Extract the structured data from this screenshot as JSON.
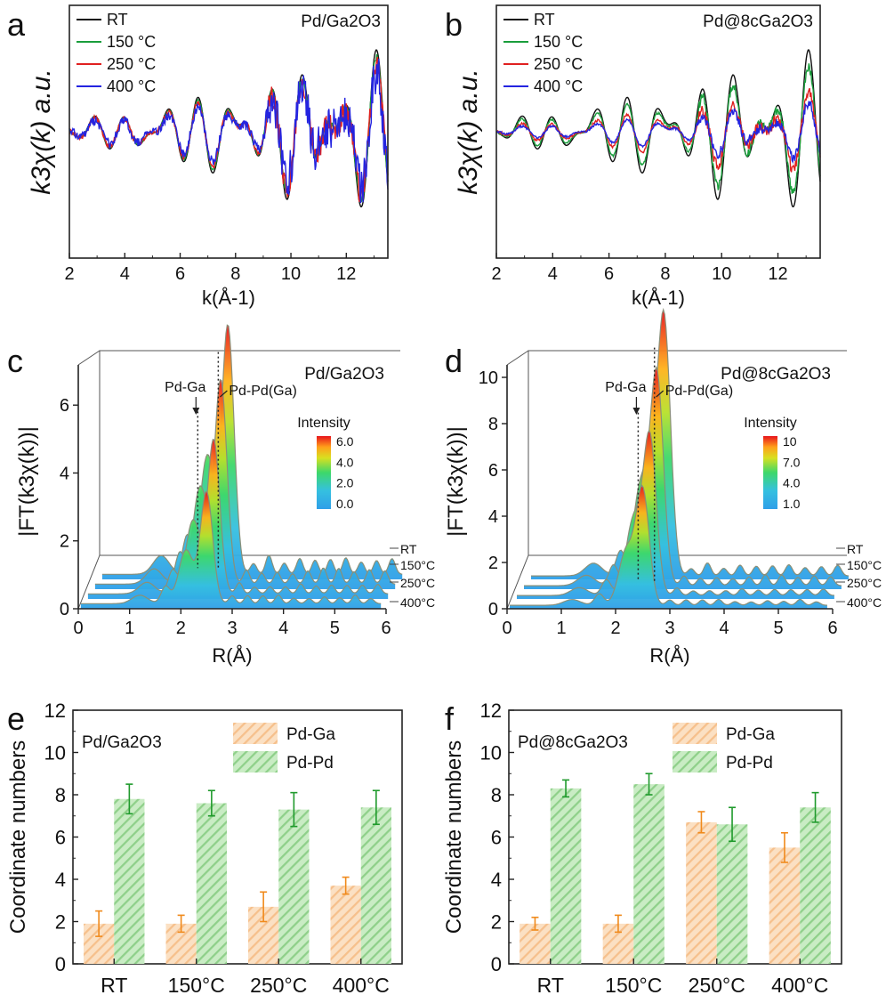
{
  "panel_letters": [
    "a",
    "b",
    "c",
    "d",
    "e",
    "f"
  ],
  "chart_data": [
    {
      "id": "a",
      "type": "line",
      "title": "Pd/Ga2O3",
      "xlabel": "k(Å-1)",
      "ylabel": "k3χ(k) a.u.",
      "xlim": [
        2,
        13.5
      ],
      "ylim": [
        -1.4,
        1.4
      ],
      "xticks": [
        2,
        4,
        6,
        8,
        10,
        12
      ],
      "legend": [
        "RT",
        "150 °C",
        "250 °C",
        "400 °C"
      ],
      "colors": [
        "#111111",
        "#1a9e3c",
        "#e02020",
        "#2424e0"
      ],
      "amplitudes": [
        1.0,
        0.92,
        0.85,
        0.72
      ],
      "noise": [
        0.0,
        0.04,
        0.12,
        0.22
      ]
    },
    {
      "id": "b",
      "type": "line",
      "title": "Pd@8cGa2O3",
      "xlabel": "k(Å-1)",
      "ylabel": "k3χ(k) a.u.",
      "xlim": [
        2,
        13.5
      ],
      "ylim": [
        -1.4,
        1.4
      ],
      "xticks": [
        2,
        4,
        6,
        8,
        10,
        12
      ],
      "legend": [
        "RT",
        "150 °C",
        "250 °C",
        "400 °C"
      ],
      "colors": [
        "#111111",
        "#1a9e3c",
        "#e02020",
        "#2424e0"
      ],
      "amplitudes": [
        1.0,
        0.8,
        0.5,
        0.35
      ],
      "noise": [
        0.0,
        0.05,
        0.06,
        0.05
      ]
    },
    {
      "id": "c",
      "type": "area",
      "title": "Pd/Ga2O3",
      "xlabel": "R(Å)",
      "ylabel": "|FT(k3χ(k))|",
      "xlim": [
        0,
        6
      ],
      "ylim": [
        0,
        7.5
      ],
      "xticks": [
        0,
        1,
        2,
        3,
        4,
        5,
        6
      ],
      "yticks": [
        0,
        2,
        4,
        6
      ],
      "series_labels": [
        "RT",
        "150°C",
        "250°C",
        "400°C"
      ],
      "peak_labels": [
        "Pd-Ga",
        "Pd-Pd(Ga)"
      ],
      "peak_positions": [
        2.1,
        2.5
      ],
      "peak_height": 7.3,
      "colorbar_title": "Intensity",
      "colorbar_ticks": [
        "6.0",
        "4.0",
        "2.0",
        "0.0"
      ]
    },
    {
      "id": "d",
      "type": "area",
      "title": "Pd@8cGa2O3",
      "xlabel": "R(Å)",
      "ylabel": "|FT(k3χ(k))|",
      "xlim": [
        0,
        6
      ],
      "ylim": [
        0,
        11
      ],
      "xticks": [
        0,
        1,
        2,
        3,
        4,
        5,
        6
      ],
      "yticks": [
        0,
        2,
        4,
        6,
        8,
        10
      ],
      "series_labels": [
        "RT",
        "150°C",
        "250°C",
        "400°C"
      ],
      "peak_labels": [
        "Pd-Ga",
        "Pd-Pd(Ga)"
      ],
      "peak_positions": [
        2.2,
        2.5
      ],
      "peak_height": 10.9,
      "colorbar_title": "Intensity",
      "colorbar_ticks": [
        "10",
        "7.0",
        "4.0",
        "1.0"
      ]
    },
    {
      "id": "e",
      "type": "bar",
      "title": "Pd/Ga2O3",
      "ylabel": "Coordinate numbers",
      "ylim": [
        0,
        12
      ],
      "yticks": [
        0,
        2,
        4,
        6,
        8,
        10,
        12
      ],
      "categories": [
        "RT",
        "150°C",
        "250°C",
        "400°C"
      ],
      "series": [
        {
          "name": "Pd-Ga",
          "values": [
            1.9,
            1.9,
            2.7,
            3.7
          ],
          "errors": [
            0.6,
            0.4,
            0.7,
            0.4
          ],
          "color": "#f6c08c",
          "hatch": "#fbe0c3",
          "err_color": "#f08a1c"
        },
        {
          "name": "Pd-Pd",
          "values": [
            7.8,
            7.6,
            7.3,
            7.4
          ],
          "errors": [
            0.7,
            0.6,
            0.8,
            0.8
          ],
          "color": "#8fd08a",
          "hatch": "#c9ecc4",
          "err_color": "#1f9a2c"
        }
      ]
    },
    {
      "id": "f",
      "type": "bar",
      "title": "Pd@8cGa2O3",
      "ylabel": "Coordinate numbers",
      "ylim": [
        0,
        12
      ],
      "yticks": [
        0,
        2,
        4,
        6,
        8,
        10,
        12
      ],
      "categories": [
        "RT",
        "150°C",
        "250°C",
        "400°C"
      ],
      "series": [
        {
          "name": "Pd-Ga",
          "values": [
            1.9,
            1.9,
            6.7,
            5.5
          ],
          "errors": [
            0.3,
            0.4,
            0.5,
            0.7
          ],
          "color": "#f6c08c",
          "hatch": "#fbe0c3",
          "err_color": "#f08a1c"
        },
        {
          "name": "Pd-Pd",
          "values": [
            8.3,
            8.5,
            6.6,
            7.4
          ],
          "errors": [
            0.4,
            0.5,
            0.8,
            0.7
          ],
          "color": "#8fd08a",
          "hatch": "#c9ecc4",
          "err_color": "#1f9a2c"
        }
      ]
    }
  ]
}
